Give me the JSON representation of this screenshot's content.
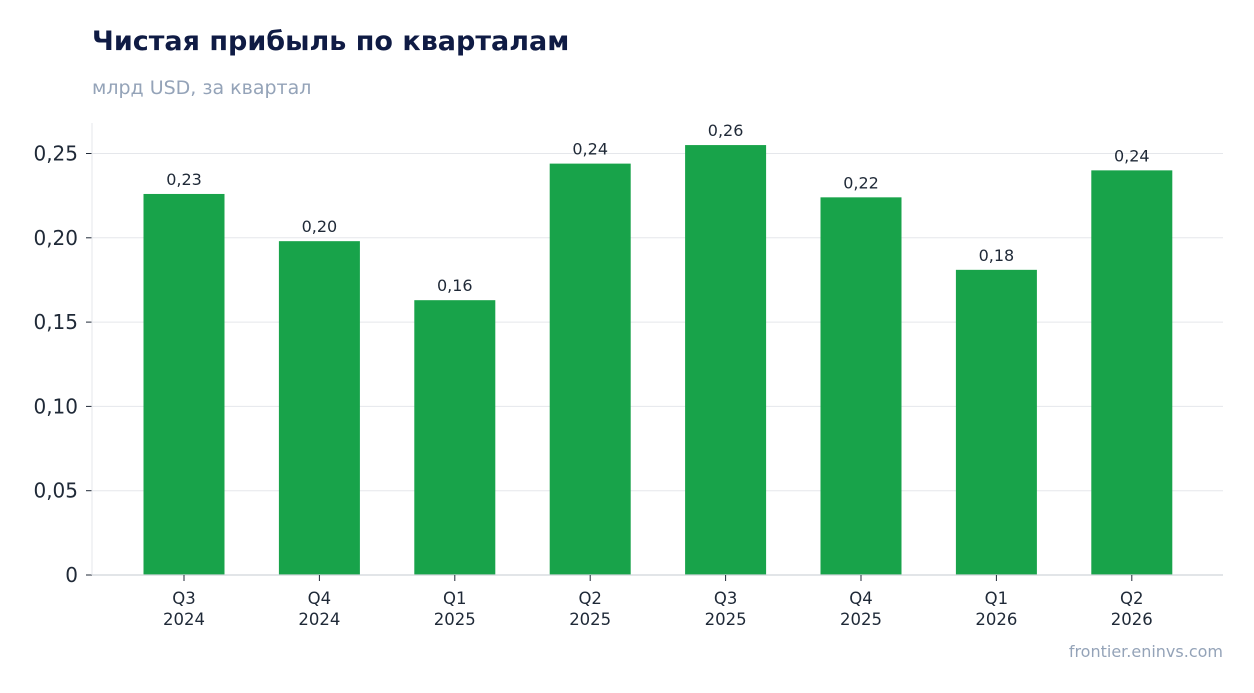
{
  "colors": {
    "bar": "#18a34a",
    "grid": "#e5e7eb",
    "axis": "#d1d5db",
    "text": "#1f2937",
    "title": "#0f1b44",
    "muted": "#94a3b8"
  },
  "source": "frontier.eninvs.com",
  "chart_data": {
    "type": "bar",
    "title": "Чистая прибыль по кварталам",
    "subtitle": "млрд USD, за квартал",
    "xlabel": "",
    "ylabel": "",
    "categories": [
      "Q3 2024",
      "Q4 2024",
      "Q1 2025",
      "Q2 2025",
      "Q3 2025",
      "Q4 2025",
      "Q1 2026",
      "Q2 2026"
    ],
    "category_lines": [
      [
        "Q3",
        "2024"
      ],
      [
        "Q4",
        "2024"
      ],
      [
        "Q1",
        "2025"
      ],
      [
        "Q2",
        "2025"
      ],
      [
        "Q3",
        "2025"
      ],
      [
        "Q4",
        "2025"
      ],
      [
        "Q1",
        "2026"
      ],
      [
        "Q2",
        "2026"
      ]
    ],
    "values": [
      0.226,
      0.198,
      0.163,
      0.244,
      0.255,
      0.224,
      0.181,
      0.24
    ],
    "data_labels": [
      "0,23",
      "0,20",
      "0,16",
      "0,24",
      "0,26",
      "0,22",
      "0,18",
      "0,24"
    ],
    "ylim": [
      0,
      0.25
    ],
    "yticks": [
      0,
      0.05,
      0.1,
      0.15,
      0.2,
      0.25
    ],
    "ytick_labels": [
      "0",
      "0,05",
      "0,10",
      "0,15",
      "0,20",
      "0,25"
    ],
    "grid": true,
    "legend": "none"
  }
}
